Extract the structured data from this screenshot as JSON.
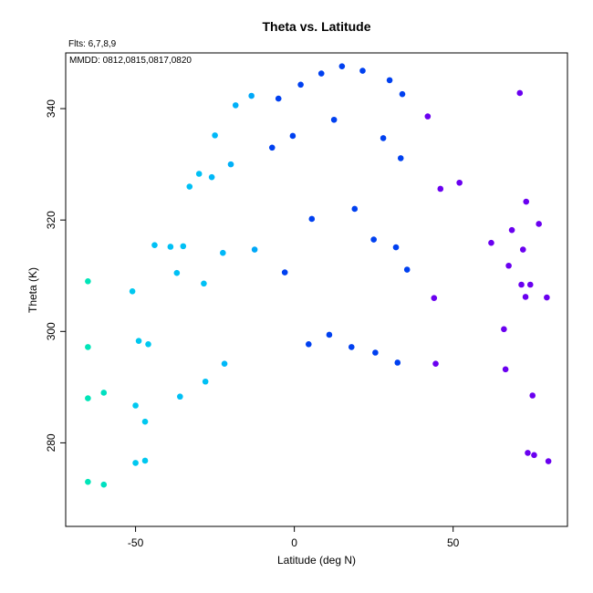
{
  "chart_data": {
    "type": "scatter",
    "title": "Theta vs. Latitude",
    "annotations": [
      "Flts: 6,7,8,9",
      "MMDD: 0812,0815,0817,0820"
    ],
    "xlabel": "Latitude (deg N)",
    "ylabel": "Theta (K)",
    "xlim": [
      -72,
      86
    ],
    "ylim": [
      265,
      350
    ],
    "xticks": [
      -50,
      0,
      50
    ],
    "yticks": [
      280,
      300,
      320,
      340
    ],
    "grid": false,
    "points": [
      {
        "x": -65,
        "y": 309,
        "color": "#00e5b8"
      },
      {
        "x": -65,
        "y": 297.2,
        "color": "#00e5b8"
      },
      {
        "x": -65,
        "y": 288,
        "color": "#00e5b8"
      },
      {
        "x": -65,
        "y": 273,
        "color": "#00e5b8"
      },
      {
        "x": -60,
        "y": 289,
        "color": "#00e0c0"
      },
      {
        "x": -60,
        "y": 272.5,
        "color": "#00e0c0"
      },
      {
        "x": -51,
        "y": 307.2,
        "color": "#00c8f0"
      },
      {
        "x": -50,
        "y": 286.7,
        "color": "#00c8f0"
      },
      {
        "x": -50,
        "y": 276.4,
        "color": "#00c8f0"
      },
      {
        "x": -49,
        "y": 298.3,
        "color": "#00c8f0"
      },
      {
        "x": -47,
        "y": 283.8,
        "color": "#00c8f0"
      },
      {
        "x": -47,
        "y": 276.8,
        "color": "#00c8f0"
      },
      {
        "x": -46,
        "y": 297.7,
        "color": "#00c8f0"
      },
      {
        "x": -44,
        "y": 315.5,
        "color": "#00c0f5"
      },
      {
        "x": -39,
        "y": 315.2,
        "color": "#00c0f5"
      },
      {
        "x": -37,
        "y": 310.5,
        "color": "#00c0f5"
      },
      {
        "x": -36,
        "y": 288.3,
        "color": "#00c0f5"
      },
      {
        "x": -35,
        "y": 315.3,
        "color": "#00c0f5"
      },
      {
        "x": -33,
        "y": 326,
        "color": "#00c0f5"
      },
      {
        "x": -30,
        "y": 328.3,
        "color": "#00c0f5"
      },
      {
        "x": -28.5,
        "y": 308.6,
        "color": "#00c0f5"
      },
      {
        "x": -28,
        "y": 291,
        "color": "#00c0f5"
      },
      {
        "x": -26,
        "y": 327.7,
        "color": "#00b8f8"
      },
      {
        "x": -25,
        "y": 335.2,
        "color": "#00b8f8"
      },
      {
        "x": -22.5,
        "y": 314.1,
        "color": "#00b8f8"
      },
      {
        "x": -22,
        "y": 294.2,
        "color": "#00b8f8"
      },
      {
        "x": -20,
        "y": 330,
        "color": "#00b0f8"
      },
      {
        "x": -18.5,
        "y": 340.6,
        "color": "#00b0f8"
      },
      {
        "x": -13.5,
        "y": 342.3,
        "color": "#00a8f8"
      },
      {
        "x": -12.5,
        "y": 314.7,
        "color": "#00a8f8"
      },
      {
        "x": -7,
        "y": 333,
        "color": "#0040f0"
      },
      {
        "x": -5,
        "y": 341.8,
        "color": "#0040f0"
      },
      {
        "x": -3,
        "y": 310.6,
        "color": "#0040f0"
      },
      {
        "x": -0.5,
        "y": 335.1,
        "color": "#0040f0"
      },
      {
        "x": 2,
        "y": 344.3,
        "color": "#0040f0"
      },
      {
        "x": 4.5,
        "y": 297.7,
        "color": "#0040f0"
      },
      {
        "x": 5.5,
        "y": 320.2,
        "color": "#0040f0"
      },
      {
        "x": 8.5,
        "y": 346.3,
        "color": "#0040f0"
      },
      {
        "x": 11,
        "y": 299.4,
        "color": "#0040f0"
      },
      {
        "x": 12.5,
        "y": 338,
        "color": "#0040f0"
      },
      {
        "x": 15,
        "y": 347.6,
        "color": "#0040f0"
      },
      {
        "x": 18,
        "y": 297.2,
        "color": "#0040f0"
      },
      {
        "x": 19,
        "y": 322,
        "color": "#0040f0"
      },
      {
        "x": 21.5,
        "y": 346.8,
        "color": "#0040f0"
      },
      {
        "x": 25,
        "y": 316.5,
        "color": "#0040f0"
      },
      {
        "x": 25.5,
        "y": 296.2,
        "color": "#0040f0"
      },
      {
        "x": 28,
        "y": 334.7,
        "color": "#0040f0"
      },
      {
        "x": 30,
        "y": 345.1,
        "color": "#0040f0"
      },
      {
        "x": 32,
        "y": 315.1,
        "color": "#0040f0"
      },
      {
        "x": 32.5,
        "y": 294.4,
        "color": "#0040f0"
      },
      {
        "x": 33.5,
        "y": 331.1,
        "color": "#0040f0"
      },
      {
        "x": 34,
        "y": 342.6,
        "color": "#0040f0"
      },
      {
        "x": 35.5,
        "y": 311.1,
        "color": "#0040f0"
      },
      {
        "x": 42,
        "y": 338.6,
        "color": "#6a00f0"
      },
      {
        "x": 44,
        "y": 306,
        "color": "#6a00f0"
      },
      {
        "x": 44.5,
        "y": 294.2,
        "color": "#6a00f0"
      },
      {
        "x": 46,
        "y": 325.6,
        "color": "#6a00f0"
      },
      {
        "x": 52,
        "y": 326.7,
        "color": "#6a00f0"
      },
      {
        "x": 62,
        "y": 315.9,
        "color": "#6a00f0"
      },
      {
        "x": 66,
        "y": 300.4,
        "color": "#6a00f0"
      },
      {
        "x": 66.5,
        "y": 293.2,
        "color": "#6a00f0"
      },
      {
        "x": 67.5,
        "y": 311.8,
        "color": "#6a00f0"
      },
      {
        "x": 68.5,
        "y": 318.2,
        "color": "#6a00f0"
      },
      {
        "x": 71,
        "y": 342.8,
        "color": "#6a00f0"
      },
      {
        "x": 71.5,
        "y": 308.4,
        "color": "#6a00f0"
      },
      {
        "x": 72,
        "y": 314.7,
        "color": "#6a00f0"
      },
      {
        "x": 72.8,
        "y": 306.2,
        "color": "#6a00f0"
      },
      {
        "x": 73,
        "y": 323.3,
        "color": "#6a00f0"
      },
      {
        "x": 73.5,
        "y": 278.2,
        "color": "#6a00f0"
      },
      {
        "x": 74.3,
        "y": 308.4,
        "color": "#6a00f0"
      },
      {
        "x": 75,
        "y": 288.5,
        "color": "#6a00f0"
      },
      {
        "x": 75.5,
        "y": 277.8,
        "color": "#6a00f0"
      },
      {
        "x": 77,
        "y": 319.3,
        "color": "#6a00f0"
      },
      {
        "x": 79.5,
        "y": 306.1,
        "color": "#6a00f0"
      },
      {
        "x": 80,
        "y": 276.7,
        "color": "#6a00f0"
      }
    ]
  }
}
